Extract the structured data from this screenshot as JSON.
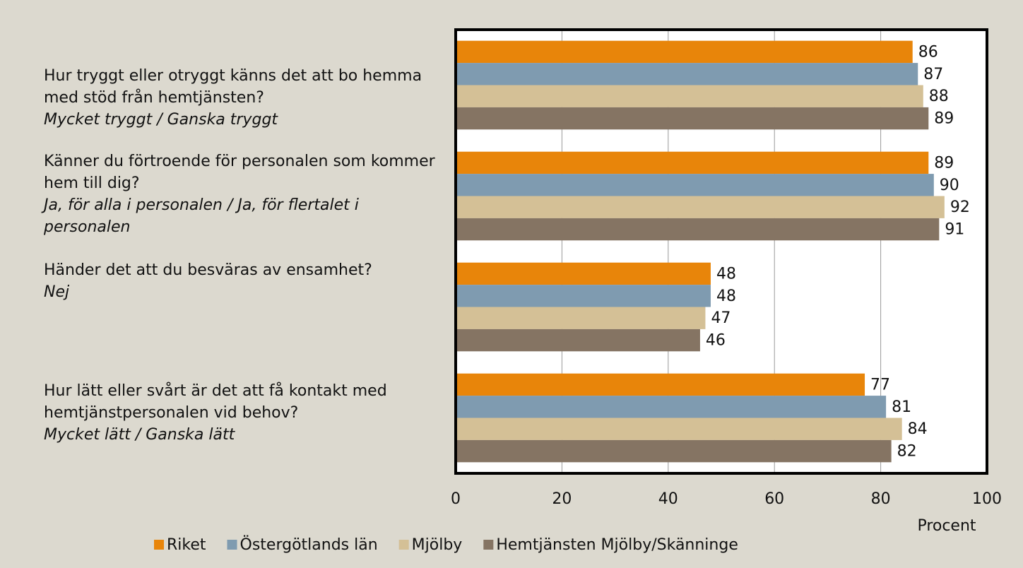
{
  "chart_data": {
    "type": "bar",
    "orientation": "horizontal",
    "categories": [
      "Hur tryggt eller otryggt känns det att bo hemma med stöd från hemtjänsten?",
      "Känner du förtroende för personalen som kommer hem till dig?",
      "Händer det att du besväras av ensamhet?",
      "Hur lätt eller svårt är det att få kontakt med hemtjänstpersonalen vid behov?"
    ],
    "category_answers": [
      "Mycket tryggt / Ganska tryggt",
      "Ja, för alla i personalen / Ja, för flertalet i personalen",
      "Nej",
      "Mycket lätt / Ganska lätt"
    ],
    "series": [
      {
        "name": "Riket",
        "color": "#e8850a",
        "values": [
          86,
          89,
          48,
          77
        ]
      },
      {
        "name": "Östergötlands län",
        "color": "#7f9bb0",
        "values": [
          87,
          90,
          48,
          81
        ]
      },
      {
        "name": "Mjölby",
        "color": "#d4c096",
        "values": [
          88,
          92,
          47,
          84
        ]
      },
      {
        "name": "Hemtjänsten Mjölby/Skänninge",
        "color": "#857463",
        "values": [
          89,
          91,
          46,
          82
        ]
      }
    ],
    "xlabel": "Procent",
    "xlim": [
      0,
      100
    ],
    "xticks": [
      0,
      20,
      40,
      60,
      80,
      100
    ],
    "grid": true,
    "legend": "bottom"
  }
}
